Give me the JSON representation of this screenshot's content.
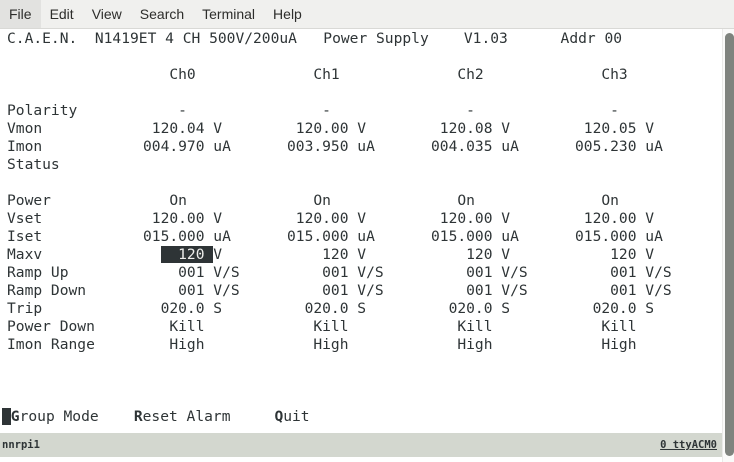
{
  "menu_bar": {
    "items": [
      "File",
      "Edit",
      "View",
      "Search",
      "Terminal",
      "Help"
    ]
  },
  "terminal": {
    "header_line": "C.A.E.N.  N1419ET 4 CH 500V/200uA   Power Supply    V1.03      Addr 00",
    "device": {
      "brand": "C.A.E.N.",
      "model": "N1419ET 4 CH 500V/200uA",
      "product": "Power Supply",
      "version": "V1.03",
      "address": "Addr 00"
    },
    "channels": [
      "Ch0",
      "Ch1",
      "Ch2",
      "Ch3"
    ],
    "rows": [
      {
        "line": 2,
        "label": "",
        "cells": [
          "   Ch0",
          "   Ch1",
          "   Ch2",
          "   Ch3"
        ]
      },
      {
        "line": 4,
        "label": "Polarity",
        "cells": [
          "    -",
          "    -",
          "    -",
          "    -"
        ]
      },
      {
        "line": 5,
        "label": "Vmon",
        "cells": [
          " 120.04 V",
          " 120.00 V",
          " 120.08 V",
          " 120.05 V"
        ]
      },
      {
        "line": 6,
        "label": "Imon",
        "cells": [
          "004.970 uA",
          "003.950 uA",
          "004.035 uA",
          "005.230 uA"
        ]
      },
      {
        "line": 7,
        "label": "Status",
        "cells": [
          "",
          "",
          "",
          ""
        ]
      },
      {
        "line": 9,
        "label": "Power",
        "cells": [
          "   On",
          "   On",
          "   On",
          "   On"
        ]
      },
      {
        "line": 10,
        "label": "Vset",
        "cells": [
          " 120.00 V",
          " 120.00 V",
          " 120.00 V",
          " 120.00 V"
        ]
      },
      {
        "line": 11,
        "label": "Iset",
        "cells": [
          "015.000 uA",
          "015.000 uA",
          "015.000 uA",
          "015.000 uA"
        ]
      },
      {
        "line": 12,
        "label": "Maxv",
        "cells": [
          {
            "pre": "  ",
            "hl": "  120 ",
            "post": "V"
          },
          "    120 V",
          "    120 V",
          "    120 V"
        ]
      },
      {
        "line": 13,
        "label": "Ramp Up",
        "cells": [
          "    001 V/S",
          "    001 V/S",
          "    001 V/S",
          "    001 V/S"
        ]
      },
      {
        "line": 14,
        "label": "Ramp Down",
        "cells": [
          "    001 V/S",
          "    001 V/S",
          "    001 V/S",
          "    001 V/S"
        ]
      },
      {
        "line": 15,
        "label": "Trip",
        "cells": [
          "  020.0 S",
          "  020.0 S",
          "  020.0 S",
          "  020.0 S"
        ]
      },
      {
        "line": 16,
        "label": "Power Down",
        "cells": [
          "   Kill",
          "   Kill",
          "   Kill",
          "   Kill"
        ]
      },
      {
        "line": 17,
        "label": "Imon Range",
        "cells": [
          "   High",
          "   High",
          "   High",
          "   High"
        ]
      }
    ],
    "footer": {
      "line": 21,
      "cursor": " ",
      "items": [
        {
          "hotkey": "G",
          "rest": "roup Mode",
          "gap_before": ""
        },
        {
          "hotkey": "R",
          "rest": "eset Alarm",
          "gap_before": "    "
        },
        {
          "hotkey": "Q",
          "rest": "uit",
          "gap_before": "     "
        }
      ]
    }
  },
  "status_bar": {
    "left": "nnrpi1",
    "right": "0 ttyACM0"
  },
  "colors": {
    "terminal_fg": "#2e3436",
    "terminal_bg": "#ffffff",
    "highlight_bg": "#2e3436",
    "highlight_fg": "#eeeeec",
    "menubar_bg": "#f0f0ee",
    "statusbar_bg": "#d3d7cf",
    "scrollbar_thumb": "#7f837e"
  }
}
